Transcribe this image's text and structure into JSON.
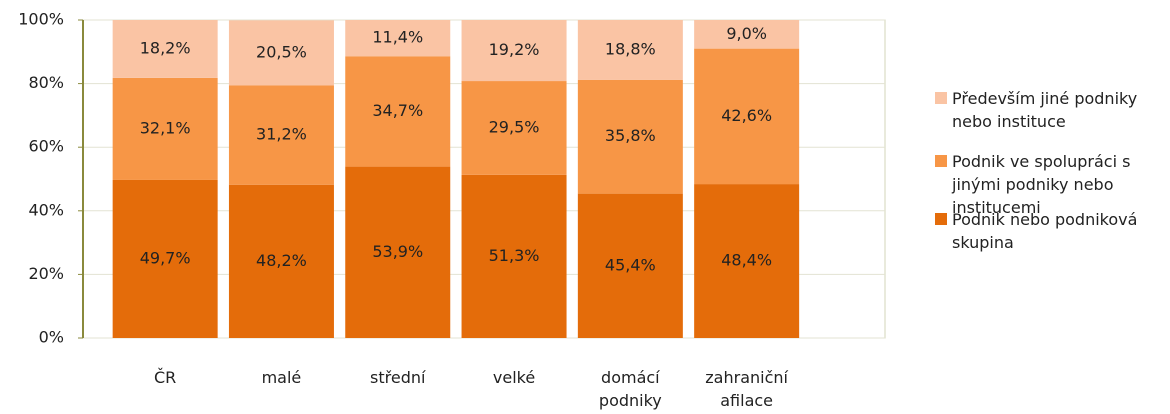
{
  "chart_data": {
    "type": "stacked_bar",
    "categories": [
      "ČR",
      "malé",
      "střední",
      "velké",
      "domácí podniky",
      "zahraniční afilace"
    ],
    "series": [
      {
        "name": "Podnik nebo podniková skupina",
        "color": "#e46c0a",
        "values": [
          49.7,
          48.2,
          53.9,
          51.3,
          45.4,
          48.4
        ],
        "value_labels": [
          "49,7%",
          "48,2%",
          "53,9%",
          "51,3%",
          "45,4%",
          "48,4%"
        ]
      },
      {
        "name": "Podnik ve spolupráci s jinými podniky nebo institucemi",
        "color": "#f79646",
        "values": [
          32.1,
          31.2,
          34.7,
          29.5,
          35.8,
          42.6
        ],
        "value_labels": [
          "32,1%",
          "31,2%",
          "34,7%",
          "29,5%",
          "35,8%",
          "42,6%"
        ]
      },
      {
        "name": "Především jiné podniky nebo instituce",
        "color": "#fac4a4",
        "values": [
          18.2,
          20.5,
          11.4,
          19.2,
          18.8,
          9.0
        ],
        "value_labels": [
          "18,2%",
          "20,5%",
          "11,4%",
          "19,2%",
          "18,8%",
          "9,0%"
        ]
      }
    ],
    "ylim": [
      0,
      100
    ],
    "yticks": [
      {
        "value": 0,
        "label": "0%"
      },
      {
        "value": 20,
        "label": "20%"
      },
      {
        "value": 40,
        "label": "40%"
      },
      {
        "value": 60,
        "label": "60%"
      },
      {
        "value": 80,
        "label": "80%"
      },
      {
        "value": 100,
        "label": "100%"
      }
    ],
    "grid": true,
    "legend": "right"
  }
}
